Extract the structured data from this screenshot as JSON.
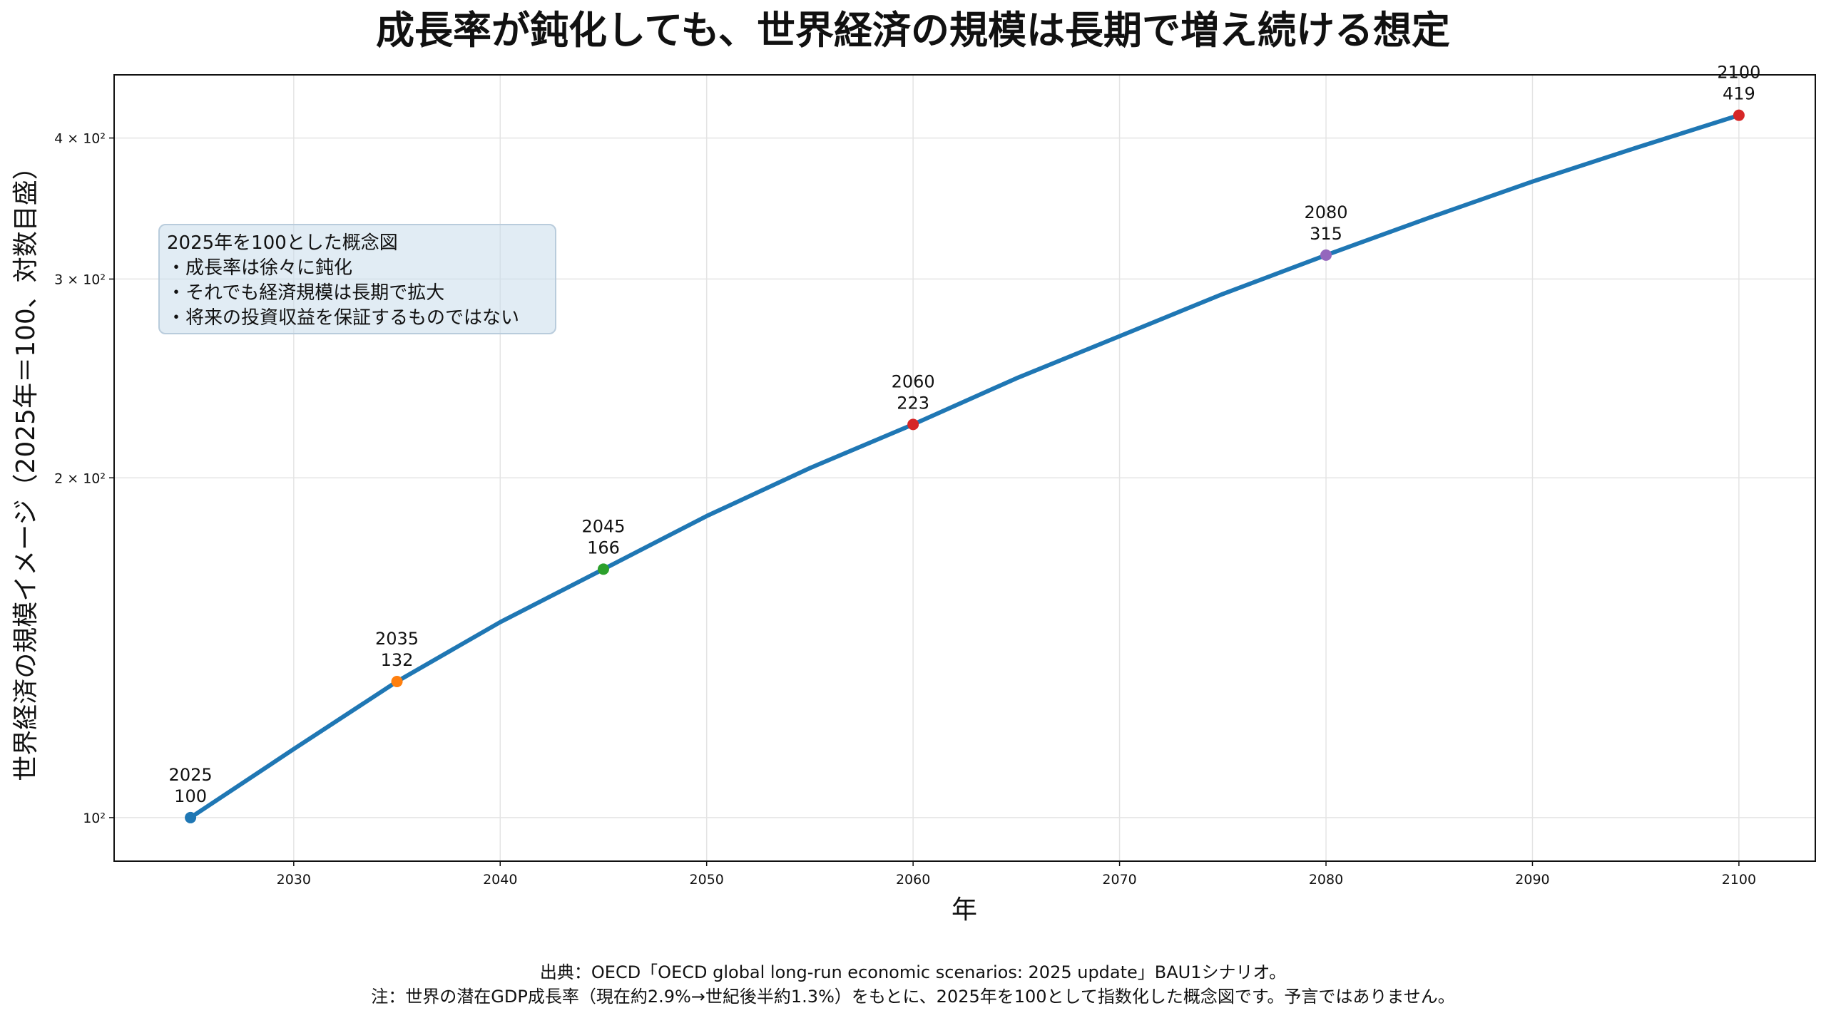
{
  "title": "成長率が鈍化しても、世界経済の規模は長期で増え続ける想定",
  "chart_data": {
    "type": "line",
    "title": "成長率が鈍化しても、世界経済の規模は長期で増え続ける想定",
    "xlabel": "年",
    "ylabel": "世界経済の規模イメージ（2025年＝100、対数目盛）",
    "yscale": "log",
    "xlim": [
      2021.3,
      2103.7
    ],
    "ylim": [
      91.5,
      455
    ],
    "x_ticks": [
      2030,
      2040,
      2050,
      2060,
      2070,
      2080,
      2090,
      2100
    ],
    "y_ticks": [
      {
        "value": 100,
        "label": "10²"
      },
      {
        "value": 200,
        "label": "2 × 10²"
      },
      {
        "value": 300,
        "label": "3 × 10²"
      },
      {
        "value": 400,
        "label": "4 × 10²"
      }
    ],
    "grid": true,
    "line_color": "#1f77b4",
    "series": [
      {
        "x": [
          2025,
          2030,
          2035,
          2040,
          2045,
          2050,
          2055,
          2060,
          2065,
          2070,
          2075,
          2080,
          2085,
          2090,
          2095,
          2100
        ],
        "values": [
          100,
          115,
          132,
          149,
          166,
          185,
          204,
          223,
          245,
          267,
          291,
          315,
          340,
          366,
          392,
          419
        ]
      }
    ],
    "annotations": [
      {
        "x": 2025,
        "y": 100,
        "year": "2025",
        "value": "100",
        "color": "#1f77b4"
      },
      {
        "x": 2035,
        "y": 132,
        "year": "2035",
        "value": "132",
        "color": "#ff7f0e"
      },
      {
        "x": 2045,
        "y": 166,
        "year": "2045",
        "value": "166",
        "color": "#2ca02c"
      },
      {
        "x": 2060,
        "y": 223,
        "year": "2060",
        "value": "223",
        "color": "#d62728"
      },
      {
        "x": 2080,
        "y": 315,
        "year": "2080",
        "value": "315",
        "color": "#9467bd"
      },
      {
        "x": 2100,
        "y": 419,
        "year": "2100",
        "value": "419",
        "color": "#d62728"
      }
    ]
  },
  "info_box": {
    "lines": [
      "2025年を100とした概念図",
      "・成長率は徐々に鈍化",
      "・それでも経済規模は長期で拡大",
      "・将来の投資収益を保証するものではない"
    ]
  },
  "source": {
    "line1": "出典：OECD「OECD global long-run economic scenarios: 2025 update」BAU1シナリオ。",
    "line2": "注：世界の潜在GDP成長率（現在約2.9%→世紀後半約1.3%）をもとに、2025年を100として指数化した概念図です。予言ではありません。"
  }
}
